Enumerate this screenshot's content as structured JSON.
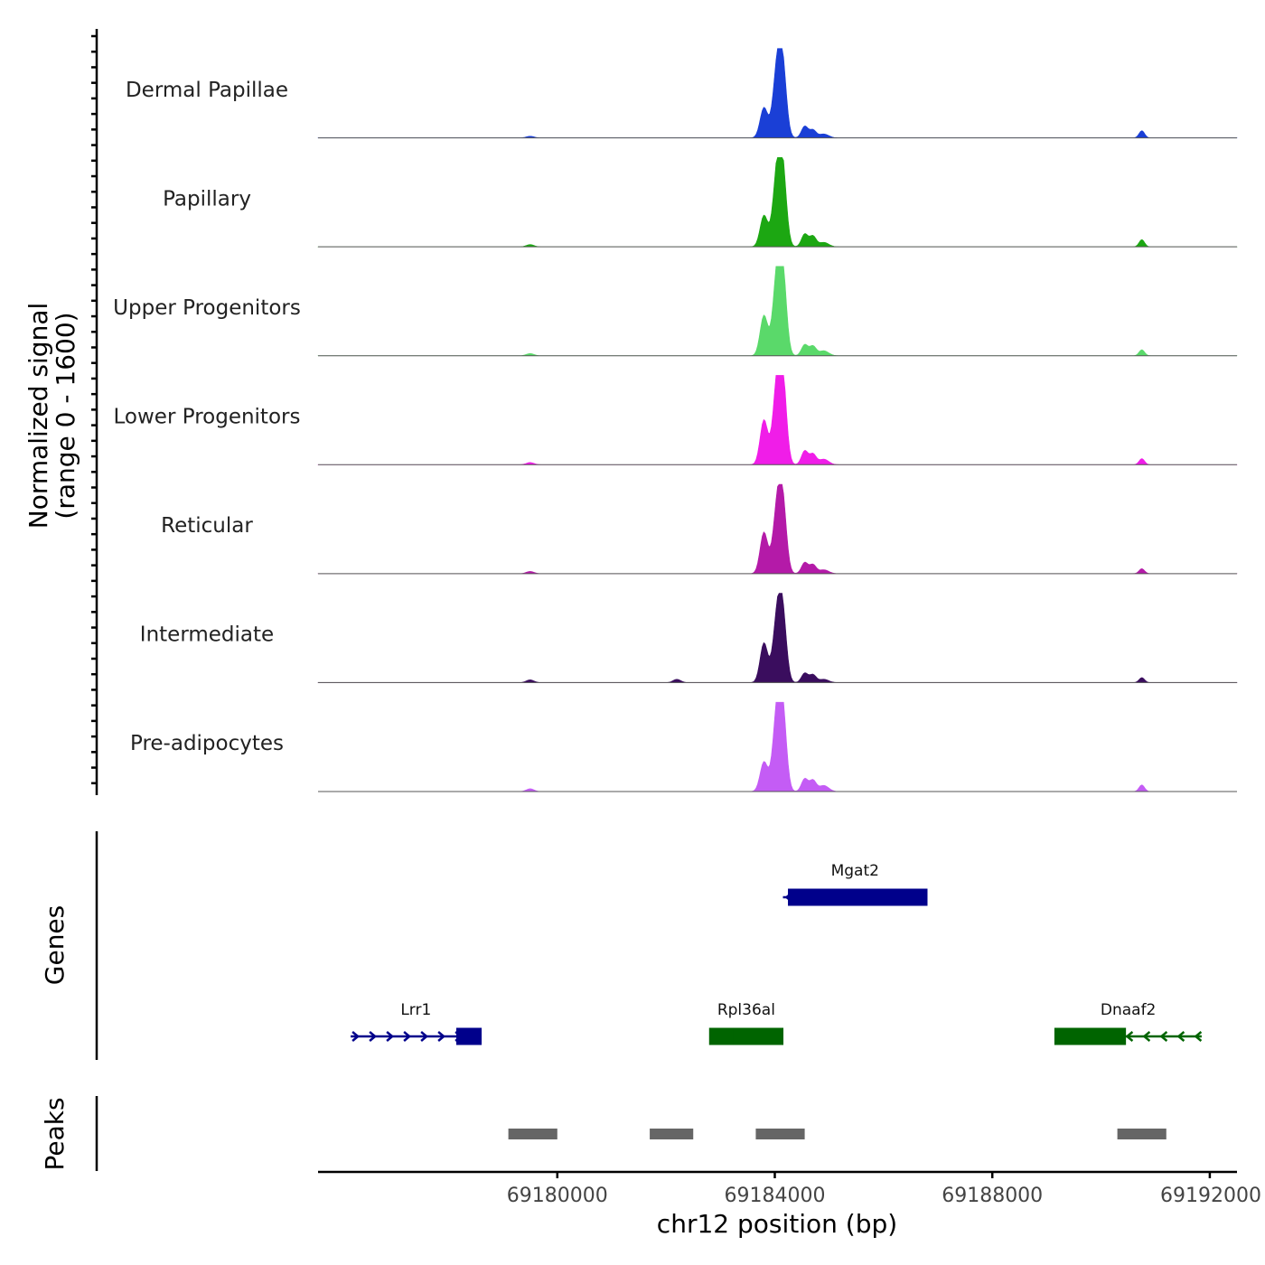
{
  "chart_data": {
    "type": "area",
    "xlabel": "chr12 position (bp)",
    "ylabel": "Normalized signal",
    "ylabel_sub": "(range 0 - 1600)",
    "y_range": [
      0,
      1600
    ],
    "xlim": [
      69175600,
      69192500
    ],
    "x_ticks": [
      69180000,
      69184000,
      69188000,
      69192000
    ],
    "x_tick_labels": [
      "69180000",
      "69184000",
      "69188000",
      "69192000"
    ],
    "series": [
      {
        "name": "Dermal Papillae",
        "color": "#1a3fd6",
        "peaks": [
          [
            69183800,
            540,
            70
          ],
          [
            69184050,
            1280,
            80
          ],
          [
            69184150,
            980,
            70
          ],
          [
            69184550,
            210,
            60
          ],
          [
            69184700,
            140,
            60
          ],
          [
            69184900,
            70,
            90
          ],
          [
            69179500,
            30,
            70
          ],
          [
            69190750,
            130,
            50
          ]
        ]
      },
      {
        "name": "Papillary",
        "color": "#1ca712",
        "peaks": [
          [
            69183800,
            560,
            70
          ],
          [
            69184050,
            1380,
            80
          ],
          [
            69184150,
            1050,
            70
          ],
          [
            69184550,
            230,
            60
          ],
          [
            69184700,
            190,
            60
          ],
          [
            69184900,
            80,
            90
          ],
          [
            69179500,
            40,
            70
          ],
          [
            69190750,
            130,
            50
          ]
        ]
      },
      {
        "name": "Upper Progenitors",
        "color": "#5ad96a",
        "peaks": [
          [
            69183800,
            720,
            70
          ],
          [
            69184050,
            1500,
            80
          ],
          [
            69184150,
            1150,
            70
          ],
          [
            69184550,
            200,
            60
          ],
          [
            69184700,
            170,
            60
          ],
          [
            69184900,
            90,
            90
          ],
          [
            69179500,
            40,
            70
          ],
          [
            69190750,
            110,
            50
          ]
        ]
      },
      {
        "name": "Lower Progenitors",
        "color": "#f01de8",
        "peaks": [
          [
            69183800,
            800,
            70
          ],
          [
            69184050,
            1500,
            80
          ],
          [
            69184150,
            1200,
            70
          ],
          [
            69184550,
            250,
            60
          ],
          [
            69184700,
            190,
            60
          ],
          [
            69184900,
            100,
            90
          ],
          [
            69179500,
            40,
            70
          ],
          [
            69190750,
            110,
            50
          ]
        ]
      },
      {
        "name": "Reticular",
        "color": "#b41aa8",
        "peaks": [
          [
            69183800,
            740,
            70
          ],
          [
            69184050,
            1200,
            80
          ],
          [
            69184150,
            1000,
            70
          ],
          [
            69184550,
            200,
            60
          ],
          [
            69184700,
            160,
            60
          ],
          [
            69184900,
            70,
            90
          ],
          [
            69179500,
            40,
            70
          ],
          [
            69190750,
            90,
            50
          ]
        ]
      },
      {
        "name": "Intermediate",
        "color": "#3a0d5e",
        "peaks": [
          [
            69183800,
            710,
            70
          ],
          [
            69184050,
            1200,
            80
          ],
          [
            69184150,
            950,
            70
          ],
          [
            69184550,
            170,
            60
          ],
          [
            69184700,
            140,
            60
          ],
          [
            69184900,
            60,
            90
          ],
          [
            69179500,
            50,
            70
          ],
          [
            69182200,
            60,
            70
          ],
          [
            69190750,
            90,
            50
          ]
        ]
      },
      {
        "name": "Pre-adipocytes",
        "color": "#c45cf5",
        "peaks": [
          [
            69183800,
            530,
            70
          ],
          [
            69184050,
            1500,
            80
          ],
          [
            69184150,
            1100,
            70
          ],
          [
            69184550,
            230,
            60
          ],
          [
            69184700,
            200,
            60
          ],
          [
            69184900,
            110,
            90
          ],
          [
            69179500,
            50,
            70
          ],
          [
            69190750,
            120,
            50
          ]
        ]
      }
    ],
    "genes_track_title": "Genes",
    "genes": [
      {
        "name": "Lrr1",
        "start": 69176200,
        "end": 69178600,
        "strand": "+",
        "color": "#00008b",
        "exons": [
          [
            69178150,
            69178600
          ]
        ],
        "row": 2
      },
      {
        "name": "Mgat2",
        "start": 69184150,
        "end": 69186800,
        "strand": "-",
        "color": "#00008b",
        "exons": [
          [
            69184250,
            69186800
          ]
        ],
        "row": 1
      },
      {
        "name": "Rpl36al",
        "start": 69182800,
        "end": 69184150,
        "strand": "+",
        "color": "#006400",
        "exons": [
          [
            69182800,
            69183250
          ],
          [
            69183250,
            69184150
          ]
        ],
        "row": 2
      },
      {
        "name": "Dnaaf2",
        "start": 69189150,
        "end": 69191850,
        "strand": "-",
        "color": "#006400",
        "exons": [
          [
            69189150,
            69190450
          ]
        ],
        "row": 2
      }
    ],
    "peaks_track_title": "Peaks",
    "peaks_regions": [
      [
        69179100,
        69180000
      ],
      [
        69181700,
        69182500
      ],
      [
        69183650,
        69184550
      ],
      [
        69190300,
        69191200
      ]
    ]
  }
}
